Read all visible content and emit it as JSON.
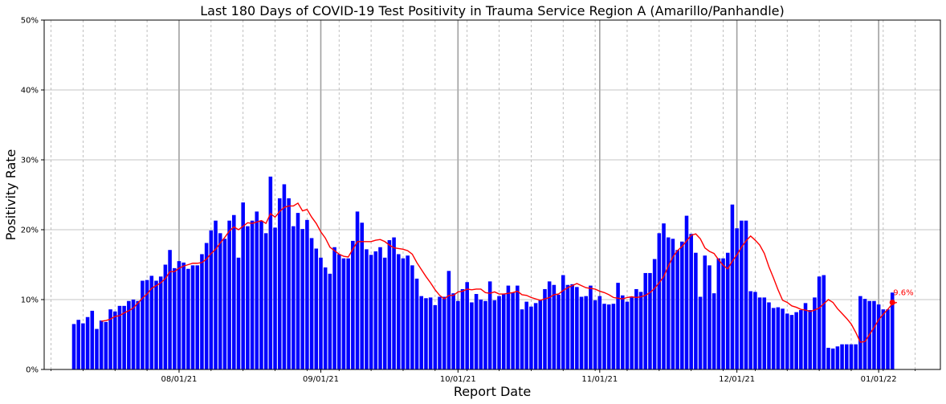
{
  "chart_data": {
    "type": "bar",
    "title": "Last 180 Days of COVID-19 Test Positivity in Trauma Service Region A (Amarillo/Panhandle)",
    "xlabel": "Report Date",
    "ylabel": "Positivity Rate",
    "ylim": [
      0,
      50
    ],
    "y_ticks": [
      "0%",
      "10%",
      "20%",
      "30%",
      "40%",
      "50%"
    ],
    "x_ticks": [
      "08/01/21",
      "09/01/21",
      "10/01/21",
      "11/01/21",
      "12/01/21",
      "01/01/22"
    ],
    "grid": true,
    "start_date": "2021-07-09",
    "end_date": "2022-01-08",
    "series": [
      {
        "type": "bar",
        "color": "#0000ff",
        "values": [
          6.5,
          7.1,
          6.6,
          7.5,
          8.4,
          5.8,
          7.0,
          6.8,
          8.6,
          8.3,
          9.1,
          9.1,
          9.8,
          10.0,
          9.8,
          12.7,
          12.8,
          13.4,
          12.7,
          13.3,
          15.0,
          17.1,
          14.5,
          15.5,
          15.3,
          14.4,
          14.9,
          14.9,
          16.5,
          18.1,
          19.9,
          21.3,
          19.5,
          18.7,
          21.3,
          22.1,
          16.0,
          23.9,
          20.5,
          21.3,
          22.6,
          21.3,
          19.5,
          27.6,
          20.3,
          24.5,
          26.5,
          24.5,
          20.5,
          22.4,
          20.1,
          21.4,
          18.8,
          17.3,
          16.0,
          14.6,
          13.7,
          17.5,
          16.5,
          15.9,
          15.9,
          18.4,
          22.6,
          21.0,
          17.2,
          16.4,
          16.9,
          17.5,
          16.0,
          18.5,
          18.9,
          16.5,
          15.9,
          16.3,
          14.9,
          13.0,
          10.5,
          10.2,
          10.3,
          9.2,
          10.4,
          10.4,
          14.1,
          10.9,
          9.8,
          11.5,
          12.5,
          9.6,
          10.8,
          10.0,
          9.8,
          12.6,
          9.9,
          10.5,
          10.8,
          12.0,
          11.0,
          12.0,
          8.6,
          9.7,
          9.0,
          9.5,
          9.9,
          11.5,
          12.6,
          12.1,
          10.7,
          13.5,
          12.1,
          12.2,
          11.8,
          10.4,
          10.5,
          12.0,
          9.9,
          10.5,
          9.4,
          9.3,
          9.4,
          12.4,
          10.6,
          9.7,
          10.3,
          11.5,
          11.1,
          13.8,
          13.8,
          15.8,
          19.5,
          20.9,
          18.9,
          18.7,
          17.1,
          18.3,
          22.0,
          19.4,
          16.7,
          10.4,
          16.3,
          14.9,
          10.9,
          15.9,
          15.9,
          16.7,
          23.6,
          20.2,
          21.3,
          21.3,
          11.2,
          11.1,
          10.3,
          10.3,
          9.6,
          8.8,
          8.9,
          8.7,
          8.0,
          7.8,
          8.2,
          8.5,
          9.5,
          8.5,
          10.3,
          13.3,
          13.5,
          3.1,
          3.0,
          3.3,
          3.6,
          3.6,
          3.6,
          3.6,
          10.5,
          10.1,
          9.8,
          9.8,
          9.3,
          8.6,
          8.6,
          11.0
        ]
      },
      {
        "type": "line",
        "color": "#ff0000",
        "values": [
          null,
          null,
          null,
          null,
          null,
          null,
          6.9,
          7.0,
          7.2,
          7.6,
          7.7,
          8.1,
          8.4,
          8.8,
          9.5,
          10.2,
          10.8,
          11.6,
          12.0,
          12.4,
          13.0,
          14.0,
          14.0,
          14.5,
          14.8,
          15.0,
          15.2,
          15.2,
          15.3,
          15.8,
          16.6,
          17.2,
          18.1,
          18.9,
          19.8,
          20.4,
          20.0,
          20.5,
          21.0,
          20.9,
          21.1,
          21.3,
          20.9,
          22.3,
          21.8,
          22.6,
          23.2,
          23.4,
          23.4,
          23.8,
          22.7,
          22.9,
          21.8,
          20.9,
          19.7,
          18.8,
          17.5,
          17.0,
          16.5,
          16.2,
          16.1,
          17.2,
          18.3,
          18.3,
          18.3,
          18.3,
          18.5,
          18.6,
          18.3,
          17.8,
          17.4,
          17.3,
          17.2,
          17.0,
          16.5,
          15.3,
          14.3,
          13.3,
          12.4,
          11.4,
          10.6,
          10.1,
          10.6,
          10.6,
          11.1,
          11.2,
          11.5,
          11.4,
          11.5,
          11.5,
          11.0,
          10.9,
          11.1,
          10.8,
          10.8,
          10.9,
          11.0,
          11.2,
          10.7,
          10.6,
          10.3,
          10.1,
          9.9,
          10.1,
          10.3,
          10.7,
          10.8,
          11.3,
          11.7,
          12.0,
          12.3,
          12.0,
          11.7,
          11.6,
          11.5,
          11.2,
          11.0,
          10.7,
          10.3,
          10.2,
          10.1,
          10.3,
          10.4,
          10.3,
          10.4,
          10.6,
          11.0,
          11.6,
          12.4,
          13.3,
          14.8,
          16.1,
          17.0,
          17.6,
          18.4,
          19.2,
          19.4,
          18.7,
          17.4,
          16.9,
          16.6,
          15.7,
          14.9,
          14.4,
          15.5,
          16.4,
          17.5,
          18.4,
          19.1,
          18.5,
          17.8,
          16.6,
          14.7,
          13.1,
          11.4,
          9.9,
          9.6,
          9.1,
          8.9,
          8.6,
          8.5,
          8.3,
          8.5,
          8.8,
          9.4,
          10.0,
          9.6,
          8.7,
          8.0,
          7.3,
          6.5,
          5.3,
          3.9,
          4.0,
          5.0,
          6.0,
          7.1,
          7.9,
          8.6,
          9.4,
          9.6
        ]
      }
    ],
    "annotation": {
      "text": "9.6%",
      "value": 9.6,
      "color": "#ff0000"
    }
  }
}
